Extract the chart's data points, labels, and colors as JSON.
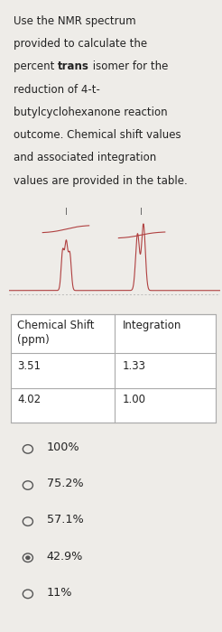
{
  "title_lines": [
    [
      {
        "text": "Use the NMR spectrum",
        "bold": false
      }
    ],
    [
      {
        "text": "provided to calculate the",
        "bold": false
      }
    ],
    [
      {
        "text": "percent ",
        "bold": false
      },
      {
        "text": "trans",
        "bold": true
      },
      {
        "text": " isomer for the",
        "bold": false
      }
    ],
    [
      {
        "text": "reduction of 4-t-",
        "bold": false
      }
    ],
    [
      {
        "text": "butylcyclohexanone reaction",
        "bold": false
      }
    ],
    [
      {
        "text": "outcome. Chemical shift values",
        "bold": false
      }
    ],
    [
      {
        "text": "and associated integration",
        "bold": false
      }
    ],
    [
      {
        "text": "values are provided in the table.",
        "bold": false
      }
    ]
  ],
  "table_headers": [
    "Chemical Shift\n(ppm)",
    "Integration"
  ],
  "table_rows": [
    [
      "3.51",
      "1.33"
    ],
    [
      "4.02",
      "1.00"
    ]
  ],
  "choices": [
    "100%",
    "75.2%",
    "57.1%",
    "42.9%",
    "11%"
  ],
  "last_filled": 4,
  "bg_color": "#eeece8",
  "text_color": "#222222",
  "font_size": 8.5,
  "table_font_size": 8.5,
  "mc_font_size": 9.2
}
